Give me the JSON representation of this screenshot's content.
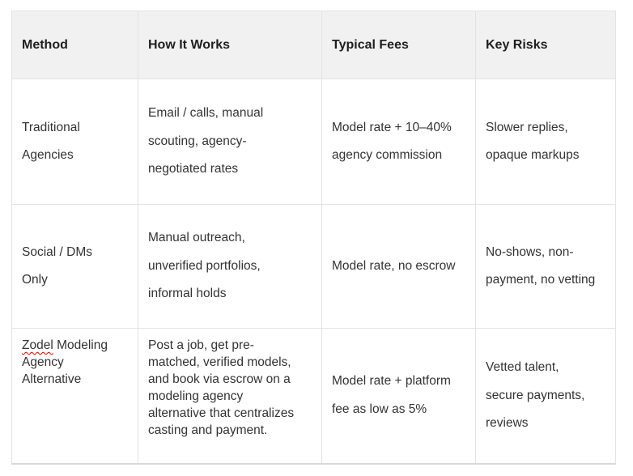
{
  "table": {
    "columns": [
      {
        "label": "Method"
      },
      {
        "label": "How It Works"
      },
      {
        "label": "Typical Fees"
      },
      {
        "label": "Key Risks"
      }
    ],
    "rows": [
      {
        "method": "Traditional Agencies",
        "how_it_works": "Email / calls, manual scouting, agency-negotiated rates",
        "typical_fees": "Model rate + 10–40% agency commission",
        "key_risks": "Slower replies, opaque markups"
      },
      {
        "method": "Social / DMs Only",
        "how_it_works": "Manual outreach, unverified portfolios, informal holds",
        "typical_fees": "Model rate, no escrow",
        "key_risks": "No-shows, non-payment, no vetting"
      },
      {
        "method_misspelled_word": "Zodel",
        "method_rest": " Modeling Agency Alternative",
        "how_it_works": "Post a job, get pre-matched, verified models, and book via escrow on a modeling agency alternative that centralizes casting and payment.",
        "typical_fees": "Model rate + platform fee as low as 5%",
        "key_risks": "Vetted talent, secure payments, reviews"
      }
    ],
    "colors": {
      "header_background": "#f1f1f1",
      "cell_border": "#e3e3e3",
      "table_bottom_border": "#d9d9d9",
      "header_text": "#1f1f1f",
      "body_text": "#333333",
      "spellcheck_underline": "#e60000"
    }
  }
}
